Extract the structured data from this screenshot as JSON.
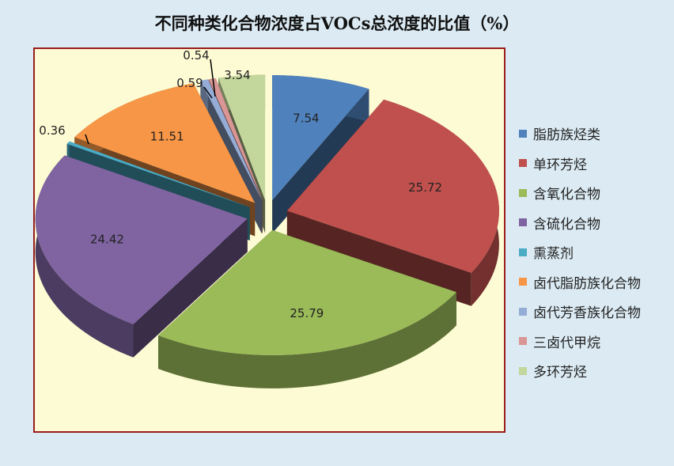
{
  "chart_data": {
    "type": "pie",
    "style": "3d-exploded",
    "title": "不同种类化合物浓度占VOCs总浓度的比值（%）",
    "categories": [
      "脂肪族烃类",
      "单环芳烃",
      "含氧化合物",
      "含硫化合物",
      "熏蒸剂",
      "卤代脂肪族化合物",
      "卤代芳香族化合物",
      "三卤代甲烷",
      "多环芳烃"
    ],
    "values": [
      7.54,
      25.72,
      25.79,
      24.42,
      0.36,
      11.51,
      0.59,
      0.54,
      3.54
    ],
    "labels": [
      "7.54",
      "25.72",
      "25.79",
      "24.42",
      "0.36",
      "11.51",
      "0.59",
      "0.54",
      "3.54"
    ],
    "colors": [
      "#4f81bd",
      "#c0504d",
      "#9bbb59",
      "#8064a2",
      "#4bacc6",
      "#f79646",
      "#95acd6",
      "#d99694",
      "#c3d69b"
    ],
    "legend_position": "right"
  }
}
